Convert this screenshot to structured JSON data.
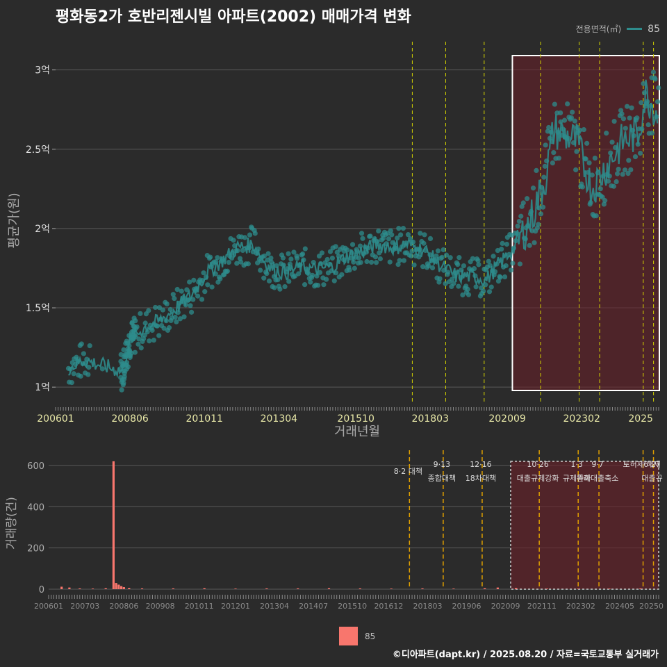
{
  "title": "평화동2가 호반리젠시빌 아파트(2002) 매매가격 변화",
  "footer": "©디아파트(dapt.kr) / 2025.08.20 / 자료=국토교통부 실거래가",
  "legend_top": {
    "title": "전용면적(㎡)",
    "label": "85",
    "color": "#2e8c8c"
  },
  "legend_bottom": {
    "label": "85",
    "color": "#f8766d"
  },
  "chart_data": [
    {
      "type": "scatter",
      "xlabel": "거래년월",
      "ylabel": "평균가(원)",
      "x_range": [
        "2006-01",
        "2025-08"
      ],
      "ylim": [
        0.9,
        3.2
      ],
      "y_ticks": [
        {
          "value": 1.0,
          "label": "1억"
        },
        {
          "value": 1.5,
          "label": "1.5억"
        },
        {
          "value": 2.0,
          "label": "2억"
        },
        {
          "value": 2.5,
          "label": "2.5억"
        },
        {
          "value": 3.0,
          "label": "3억"
        }
      ],
      "x_ticks": [
        "200601",
        "200806",
        "201011",
        "201304",
        "201510",
        "201803",
        "202009",
        "202302",
        "2025"
      ],
      "grid": true,
      "legend": "top-right",
      "highlight_box": {
        "from": "2020-11",
        "to": "2025-08"
      },
      "policy_lines": [
        "2017-08",
        "2018-09",
        "2019-12",
        "2021-10",
        "2023-01",
        "2023-09",
        "2025-02",
        "2025-06"
      ],
      "series": [
        {
          "name": "85",
          "color": "#2e8c8c",
          "trend": [
            [
              "2006-06",
              1.12
            ],
            [
              "2006-12",
              1.17
            ],
            [
              "2008-03",
              1.1
            ],
            [
              "2008-06",
              1.3
            ],
            [
              "2008-12",
              1.38
            ],
            [
              "2009-06",
              1.42
            ],
            [
              "2009-12",
              1.5
            ],
            [
              "2010-06",
              1.58
            ],
            [
              "2010-12",
              1.72
            ],
            [
              "2011-06",
              1.8
            ],
            [
              "2011-12",
              1.88
            ],
            [
              "2012-06",
              1.9
            ],
            [
              "2012-12",
              1.76
            ],
            [
              "2013-06",
              1.72
            ],
            [
              "2014-01",
              1.76
            ],
            [
              "2014-06",
              1.74
            ],
            [
              "2015-01",
              1.76
            ],
            [
              "2015-06",
              1.82
            ],
            [
              "2016-01",
              1.86
            ],
            [
              "2016-06",
              1.9
            ],
            [
              "2017-01",
              1.88
            ],
            [
              "2017-06",
              1.9
            ],
            [
              "2018-01",
              1.86
            ],
            [
              "2018-06",
              1.78
            ],
            [
              "2019-01",
              1.7
            ],
            [
              "2019-06",
              1.7
            ],
            [
              "2020-01",
              1.68
            ],
            [
              "2020-06",
              1.78
            ],
            [
              "2020-12",
              1.88
            ],
            [
              "2021-06",
              2.05
            ],
            [
              "2021-12",
              2.32
            ],
            [
              "2022-03",
              2.62
            ],
            [
              "2022-06",
              2.6
            ],
            [
              "2022-12",
              2.55
            ],
            [
              "2023-06",
              2.25
            ],
            [
              "2023-12",
              2.4
            ],
            [
              "2024-06",
              2.55
            ],
            [
              "2024-12",
              2.6
            ],
            [
              "2025-03",
              2.85
            ],
            [
              "2025-08",
              2.72
            ]
          ]
        }
      ]
    },
    {
      "type": "bar",
      "xlabel": "",
      "ylabel": "거래량(건)",
      "x_range": [
        "2006-01",
        "2025-08"
      ],
      "ylim": [
        0,
        640
      ],
      "y_ticks": [
        0,
        200,
        400,
        600
      ],
      "x_ticks": [
        "200601",
        "200703",
        "200806",
        "200908",
        "201011",
        "201201",
        "201304",
        "201407",
        "201510",
        "201612",
        "201803",
        "201906",
        "202009",
        "202111",
        "202302",
        "202405",
        "20250"
      ],
      "grid": true,
      "legend": "bottom-center",
      "highlight_box": {
        "from": "2020-11",
        "to": "2025-08"
      },
      "series": [
        {
          "name": "85",
          "color": "#f8766d",
          "points": [
            [
              "2006-06",
              12
            ],
            [
              "2006-09",
              8
            ],
            [
              "2007-01",
              4
            ],
            [
              "2007-06",
              3
            ],
            [
              "2007-11",
              5
            ],
            [
              "2008-02",
              620
            ],
            [
              "2008-03",
              30
            ],
            [
              "2008-04",
              22
            ],
            [
              "2008-05",
              15
            ],
            [
              "2008-06",
              10
            ],
            [
              "2008-08",
              6
            ],
            [
              "2009-01",
              4
            ],
            [
              "2010-01",
              4
            ],
            [
              "2011-01",
              5
            ],
            [
              "2012-01",
              3
            ],
            [
              "2013-01",
              4
            ],
            [
              "2014-01",
              4
            ],
            [
              "2015-01",
              5
            ],
            [
              "2016-01",
              4
            ],
            [
              "2017-01",
              3
            ],
            [
              "2018-01",
              4
            ],
            [
              "2019-01",
              3
            ],
            [
              "2020-01",
              5
            ],
            [
              "2020-06",
              8
            ],
            [
              "2021-01",
              6
            ],
            [
              "2022-01",
              3
            ],
            [
              "2023-01",
              3
            ],
            [
              "2024-01",
              3
            ],
            [
              "2025-01",
              4
            ]
          ]
        }
      ],
      "annotations": [
        {
          "date": "2017-08",
          "lines": [
            "8·2 대책"
          ]
        },
        {
          "date": "2018-09",
          "lines": [
            "9·13",
            "종합대책"
          ]
        },
        {
          "date": "2019-12",
          "lines": [
            "12·16",
            "18차대책"
          ]
        },
        {
          "date": "2021-10",
          "lines": [
            "10·26",
            "대출규제강화"
          ]
        },
        {
          "date": "2023-01",
          "lines": [
            "1·3",
            "규제완화"
          ]
        },
        {
          "date": "2023-09",
          "lines": [
            "9·7",
            "특례대출축소"
          ]
        },
        {
          "date": "2025-02",
          "lines": [
            "토허제 해제"
          ]
        },
        {
          "date": "2025-06",
          "lines": [
            "6·27",
            "대출규"
          ]
        }
      ]
    }
  ]
}
